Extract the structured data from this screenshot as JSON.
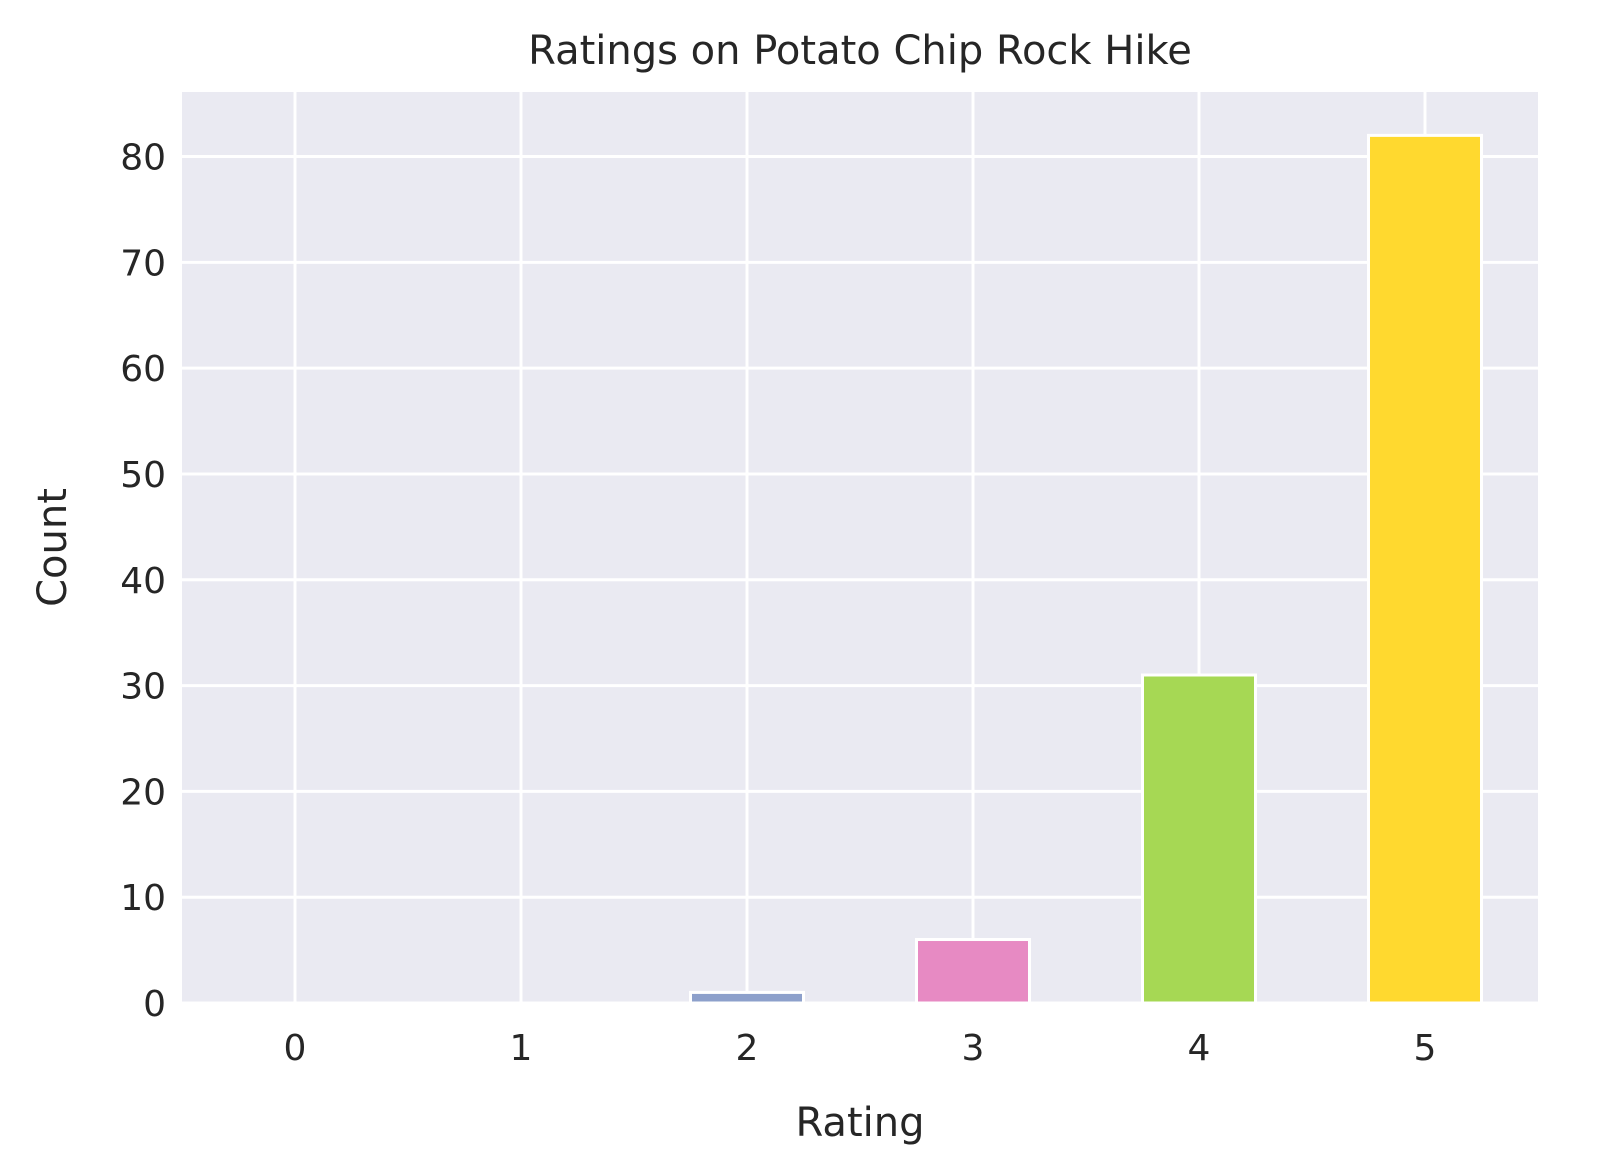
{
  "chart_data": {
    "type": "bar",
    "title": "Ratings on Potato Chip Rock Hike",
    "xlabel": "Rating",
    "ylabel": "Count",
    "categories": [
      "0",
      "1",
      "2",
      "3",
      "4",
      "5"
    ],
    "values": [
      0,
      0,
      1,
      6,
      31,
      82
    ],
    "bar_colors": [
      "#66c2a5",
      "#fc8d62",
      "#8da0cb",
      "#e78ac3",
      "#a6d854",
      "#ffd92f"
    ],
    "ylim": [
      0,
      86.1
    ],
    "yticks": [
      0,
      10,
      20,
      30,
      40,
      50,
      60,
      70,
      80
    ],
    "grid": true,
    "background_color": "#eaeaf2",
    "grid_color": "#ffffff"
  }
}
